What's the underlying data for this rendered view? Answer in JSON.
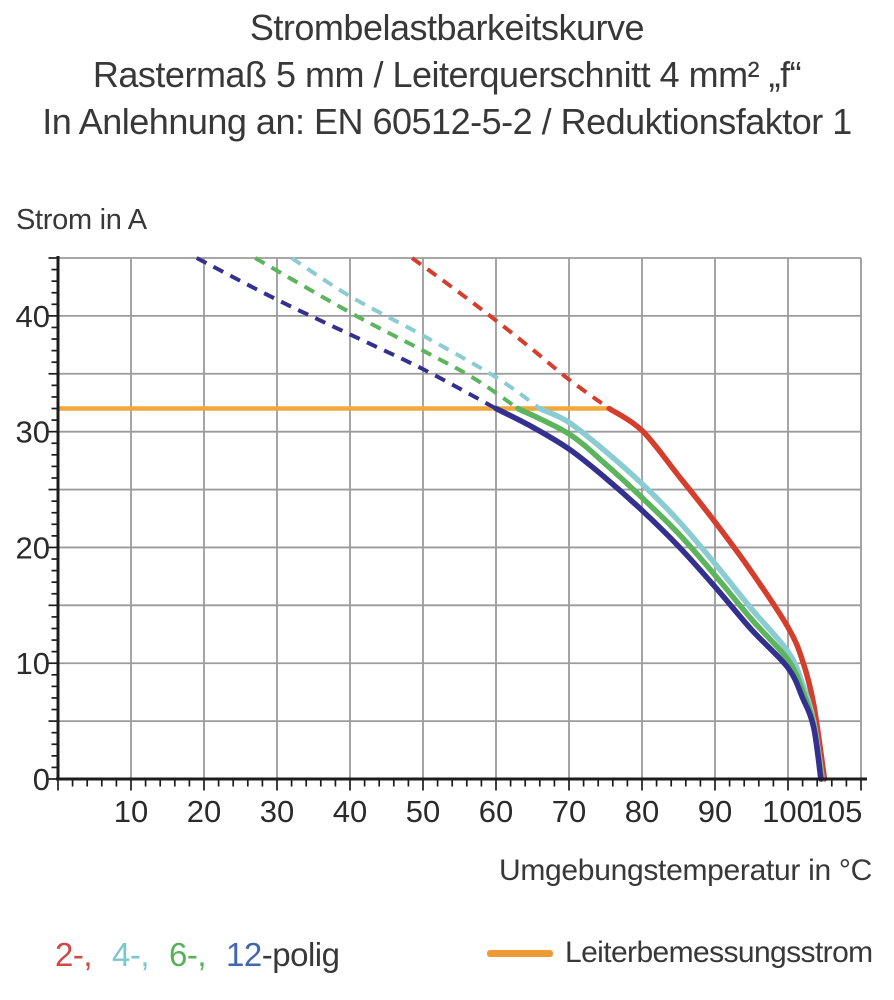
{
  "title": {
    "line1": "Strombelastbarkeitskurve",
    "line2": "Rastermaß 5 mm / Leiterquerschnitt 4 mm² „f“",
    "line3": "In Anlehnung an: EN 60512-5-2 / Reduktionsfaktor 1"
  },
  "chart_data": {
    "type": "line",
    "title": "Strombelastbarkeitskurve",
    "xlabel": "Umgebungstemperatur in °C",
    "ylabel": "Strom in A",
    "xlim": [
      0,
      110
    ],
    "ylim": [
      0,
      45
    ],
    "grid": true,
    "x_grid_step": 10,
    "y_grid_step": 5,
    "x_minor_step": 2,
    "y_minor_step": 1,
    "x_major_ticks": [
      10,
      20,
      30,
      40,
      50,
      60,
      70,
      80,
      90,
      100,
      105
    ],
    "y_major_ticks": [
      0,
      10,
      20,
      30,
      40
    ],
    "grid_color": "#9b9b9b",
    "axis_color": "#1c1c1c",
    "series": [
      {
        "name": "2-polig",
        "color": "#d53e2d",
        "dashed": [
          [
            48.5,
            45
          ],
          [
            55,
            42
          ],
          [
            60,
            39.6
          ],
          [
            65,
            37.1
          ],
          [
            70,
            34.5
          ],
          [
            75.5,
            32
          ]
        ],
        "solid": [
          [
            75.5,
            32
          ],
          [
            80,
            30.1
          ],
          [
            85,
            26.2
          ],
          [
            90,
            22.2
          ],
          [
            95,
            17.9
          ],
          [
            100,
            13.1
          ],
          [
            102,
            10.2
          ],
          [
            103.5,
            6.5
          ],
          [
            105,
            0
          ]
        ]
      },
      {
        "name": "4-polig",
        "color": "#8bccd3",
        "dashed": [
          [
            32,
            45
          ],
          [
            40,
            41.7
          ],
          [
            50,
            38.3
          ],
          [
            60,
            34.7
          ],
          [
            66,
            32
          ]
        ],
        "solid": [
          [
            66,
            32
          ],
          [
            70,
            30.8
          ],
          [
            75,
            28.3
          ],
          [
            80,
            25.5
          ],
          [
            85,
            22.3
          ],
          [
            90,
            18.6
          ],
          [
            95,
            14.7
          ],
          [
            100,
            11
          ],
          [
            102,
            8.2
          ],
          [
            103.5,
            5
          ],
          [
            104.7,
            0
          ]
        ]
      },
      {
        "name": "6-polig",
        "color": "#5cb45c",
        "dashed": [
          [
            27,
            45
          ],
          [
            40,
            40.3
          ],
          [
            50,
            37
          ],
          [
            57,
            34.6
          ],
          [
            63,
            32
          ]
        ],
        "solid": [
          [
            63,
            32
          ],
          [
            70,
            29.8
          ],
          [
            75,
            27.2
          ],
          [
            80,
            24.3
          ],
          [
            85,
            21.2
          ],
          [
            90,
            17.6
          ],
          [
            95,
            13.8
          ],
          [
            100,
            10.3
          ],
          [
            102,
            7.6
          ],
          [
            103.5,
            4.7
          ],
          [
            104.6,
            0
          ]
        ]
      },
      {
        "name": "12-polig",
        "color": "#33308f",
        "dashed": [
          [
            19,
            45
          ],
          [
            30,
            41.4
          ],
          [
            40,
            38.4
          ],
          [
            50,
            35.4
          ],
          [
            60,
            32
          ]
        ],
        "solid": [
          [
            60,
            32
          ],
          [
            65,
            30.4
          ],
          [
            70,
            28.5
          ],
          [
            75,
            26
          ],
          [
            80,
            23.2
          ],
          [
            85,
            20.1
          ],
          [
            90,
            16.6
          ],
          [
            95,
            12.9
          ],
          [
            100,
            9.6
          ],
          [
            102,
            7
          ],
          [
            103.5,
            4.5
          ],
          [
            104.5,
            0
          ]
        ]
      }
    ],
    "reference_line": {
      "name": "Leiterbemessungsstrom",
      "color": "#f2a73e",
      "value": 32,
      "x_start": 0,
      "x_end": 75.5
    }
  },
  "legend": {
    "pole_items": [
      {
        "label": "2-,",
        "color": "#cd4a44"
      },
      {
        "label": "4-,",
        "color": "#7cc6ce"
      },
      {
        "label": "6-,",
        "color": "#58b158"
      },
      {
        "label": "12",
        "color": "#4168ae"
      }
    ],
    "pole_suffix": "-polig",
    "reference": {
      "label": "Leiterbemessungsstrom",
      "swatch_color": "#f09a35"
    }
  }
}
